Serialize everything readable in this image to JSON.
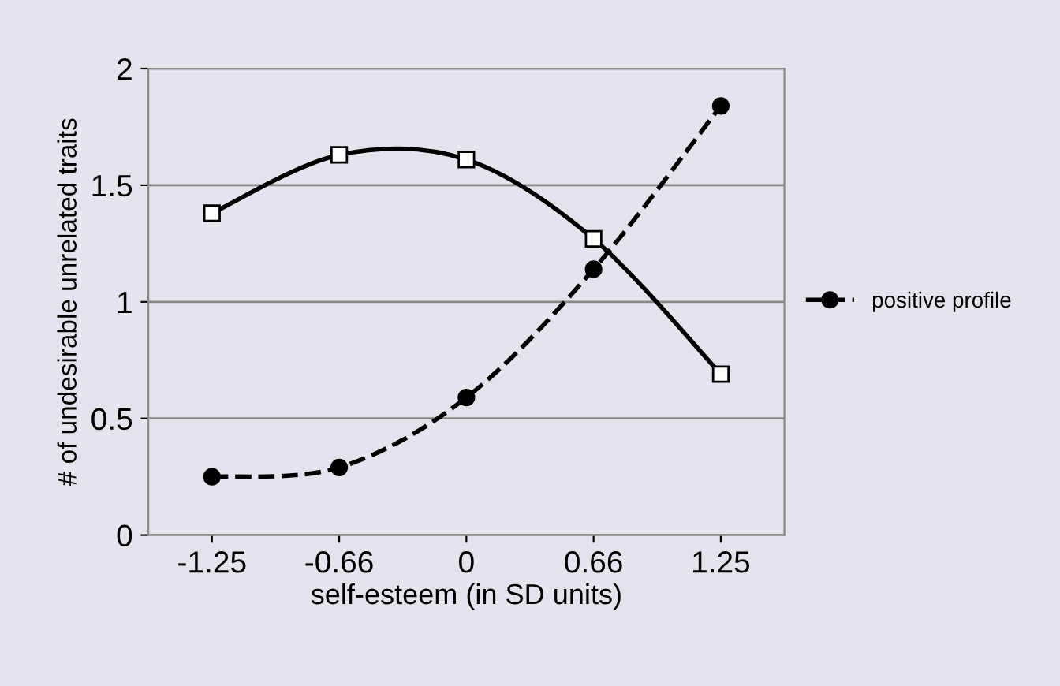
{
  "chart_data": {
    "type": "line",
    "xlabel": "self-esteem (in SD units)",
    "ylabel": "# of undesirable unrelated traits",
    "categories": [
      "-1.25",
      "-0.66",
      "0",
      "0.66",
      "1.25"
    ],
    "series": [
      {
        "color": "#000000",
        "values": [
          1.38,
          1.63,
          1.61,
          1.27,
          0.69
        ],
        "marker": "square",
        "line_style": "solid"
      },
      {
        "name": "positive profile",
        "color": "#000000",
        "values": [
          0.25,
          0.29,
          0.59,
          1.14,
          1.84
        ],
        "marker": "circle",
        "line_style": "dashed"
      }
    ],
    "ylim": [
      0,
      2
    ],
    "yticks": [
      0,
      0.5,
      1,
      1.5,
      2
    ],
    "grid": "y",
    "legend": "right"
  }
}
